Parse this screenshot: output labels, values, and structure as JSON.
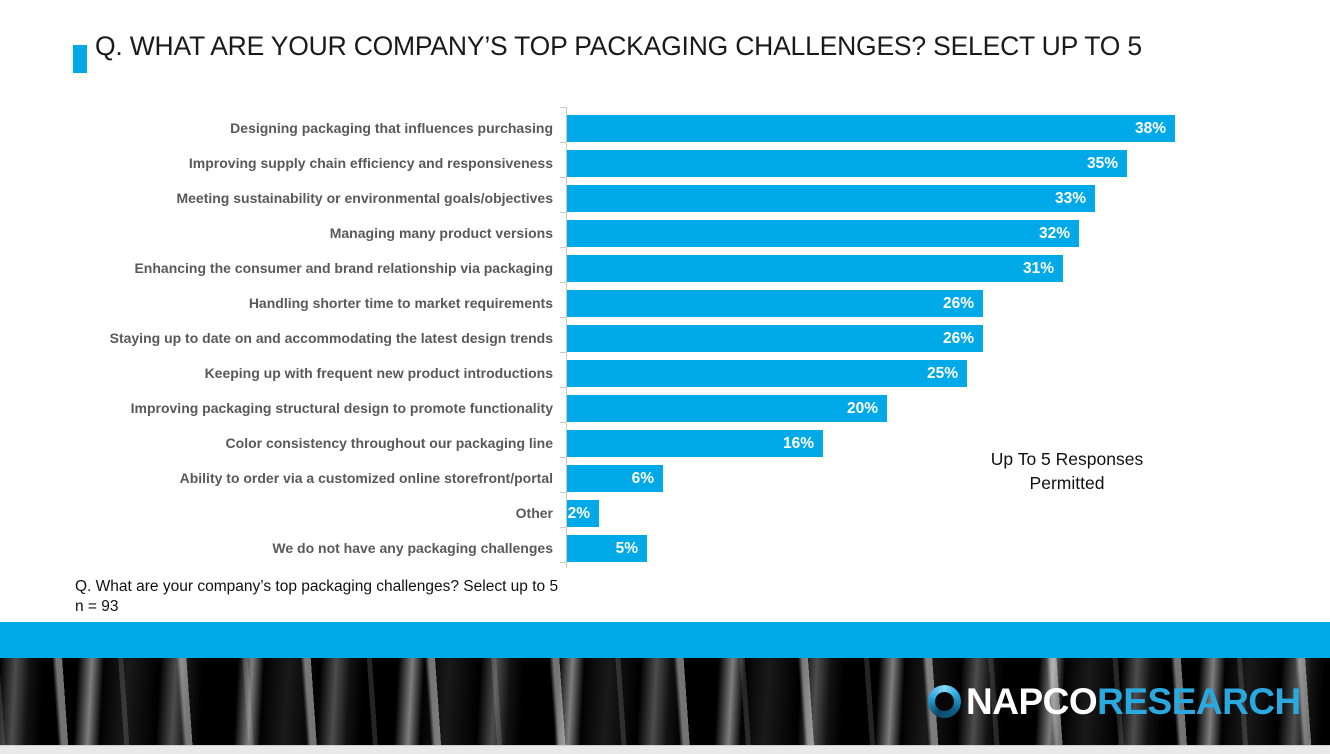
{
  "colors": {
    "accent": "#00A9E8",
    "bar": "#00A9E8",
    "label_gray": "#595959",
    "logo_blue": "#2AA9E1"
  },
  "title": {
    "text": "Q. WHAT ARE YOUR COMPANY’S TOP PACKAGING CHALLENGES? SELECT UP TO 5"
  },
  "chart_data": {
    "type": "bar",
    "orientation": "horizontal",
    "title": "Q. WHAT ARE YOUR COMPANY’S TOP PACKAGING CHALLENGES? SELECT UP TO 5",
    "categories": [
      "Designing packaging that influences purchasing",
      "Improving supply chain efficiency and responsiveness",
      "Meeting sustainability or environmental goals/objectives",
      "Managing many product versions",
      "Enhancing the consumer and brand relationship via packaging",
      "Handling shorter time to market requirements",
      "Staying up to date on and accommodating the latest design trends",
      "Keeping up with frequent new product introductions",
      "Improving packaging structural design to promote functionality",
      "Color consistency throughout our packaging line",
      "Ability to order via a customized online storefront/portal",
      "Other",
      "We do not have any packaging challenges"
    ],
    "values": [
      38,
      35,
      33,
      32,
      31,
      26,
      26,
      25,
      20,
      16,
      6,
      2,
      5
    ],
    "value_suffix": "%",
    "xlabel": "",
    "ylabel": "",
    "xlim": [
      0,
      41
    ],
    "grid": false,
    "legend": "none",
    "data_labels": "inside-end white bold",
    "bar_color": "#00A9E8"
  },
  "annotation": {
    "text": "Up To 5 Responses\nPermitted"
  },
  "footnote": {
    "question": "Q. What are your company’s top packaging challenges? Select up to 5",
    "sample": "n = 93"
  },
  "footer": {
    "brand_primary": "NAPCO",
    "brand_secondary": "RESEARCH",
    "logo_icon": "ring-swirl-icon"
  }
}
